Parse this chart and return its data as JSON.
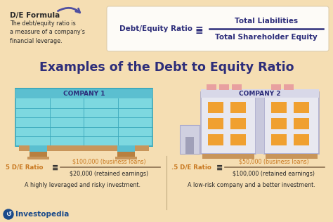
{
  "bg_color": "#f5deb3",
  "white": "#ffffff",
  "title": "Examples of the Debt to Equity Ratio",
  "title_color": "#2d2d7a",
  "title_fontsize": 12.5,
  "formula_label": "D/E Formula",
  "formula_desc": "The debt/equity ratio is\na measure of a company's\nfinancial leverage.",
  "formula_lhs": "Debt/Equity Ratio",
  "formula_eq": "=",
  "formula_numerator": "Total Liabilities",
  "formula_denominator": "Total Shareholder Equity",
  "company1_label": "COMPANY 1",
  "company2_label": "COMPANY 2",
  "teal_light": "#7dd8e0",
  "teal_mid": "#5bbfd0",
  "teal_dark": "#3aa8bc",
  "teal_border": "#2e98ad",
  "orange_win": "#f0a030",
  "tan_base": "#c8955a",
  "tan_base2": "#b88040",
  "white_wall": "#e8e8f0",
  "white_wall2": "#d8d8e8",
  "arrow_color": "#5050a0",
  "blue_dark": "#2d2d7a",
  "text_dark": "#2a2a2a",
  "text_orange": "#c87820",
  "line_color": "#8b7050",
  "ratio1_label": "5 D/E Ratio",
  "ratio1_num": "$100,000 (business loans)",
  "ratio1_den": "$20,000 (retained earnings)",
  "ratio1_desc": "A highly leveraged and risky investment.",
  "ratio2_label": ".5 D/E Ratio",
  "ratio2_num": "$50,000 (business loans)",
  "ratio2_den": "$100,000 (retained earnings)",
  "ratio2_desc": "A low-risk company and a better investment.",
  "investopedia": "Investopedia",
  "invest_blue": "#1a4a8a"
}
